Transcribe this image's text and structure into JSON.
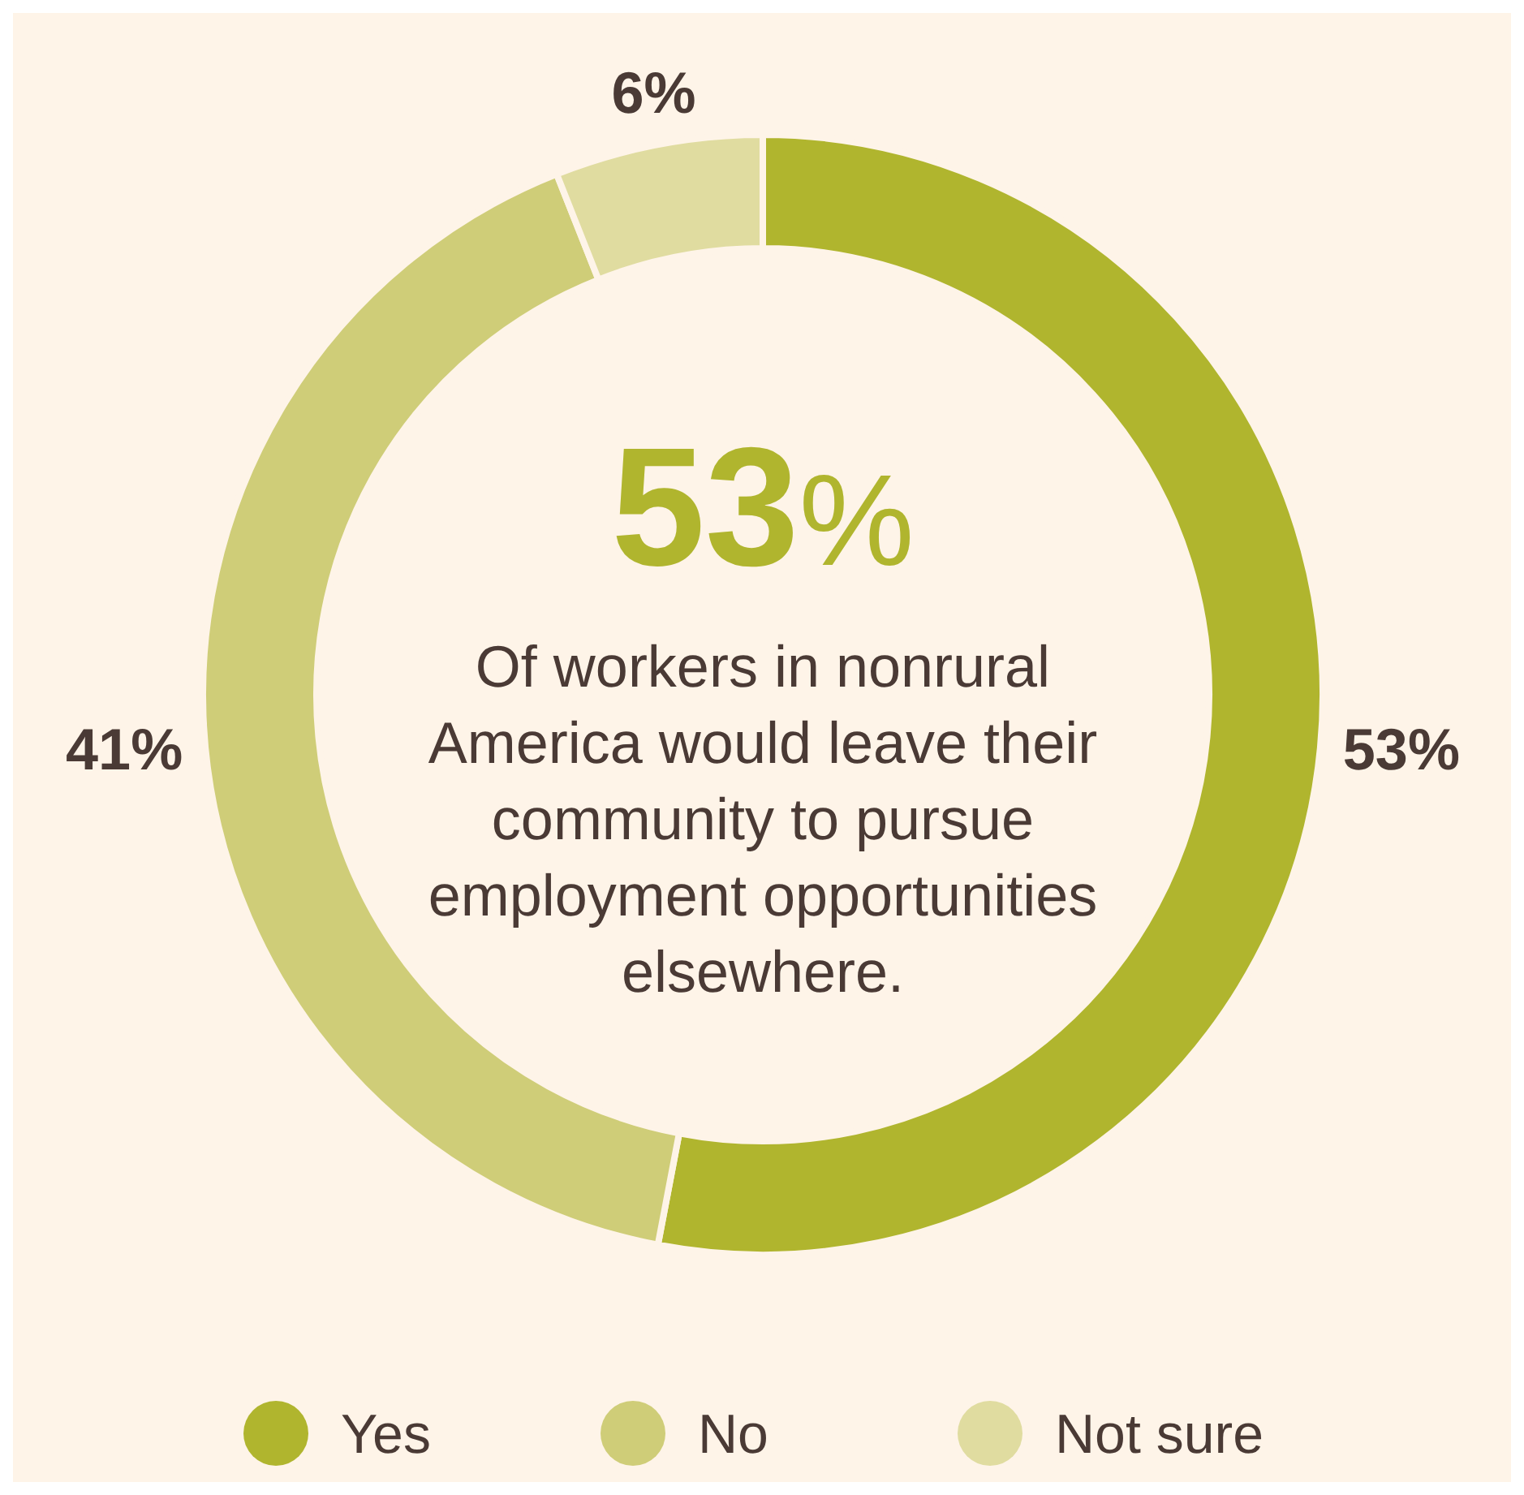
{
  "chart_data": {
    "type": "donut",
    "categories": [
      "Yes",
      "No",
      "Not sure"
    ],
    "values": [
      53,
      41,
      6
    ],
    "colors": [
      "#b0b52e",
      "#cfcd78",
      "#e0dca0"
    ],
    "value_labels": [
      "53%",
      "41%",
      "6%"
    ],
    "annotations": [
      "53%",
      "Of workers in nonrural America would leave their community to pursue employment opportunities elsewhere."
    ],
    "legend": "bottom"
  }
}
